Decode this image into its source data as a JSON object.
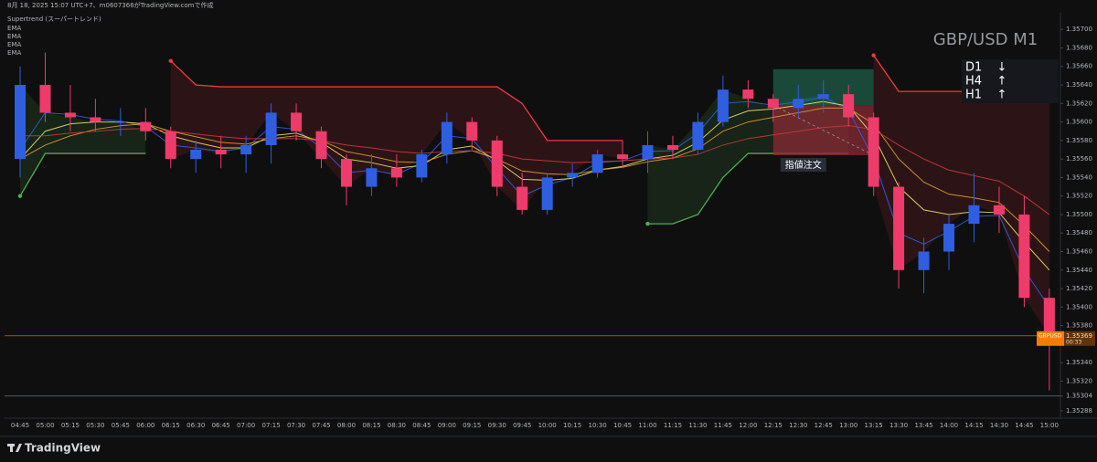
{
  "header": "8月 18, 2025 15:07 UTC+7、m0607366がTradingView.comで作成",
  "footer": {
    "brand": "TradingView"
  },
  "chart_data": {
    "type": "candlestick",
    "title": "GBP/USD M1",
    "up_color": "#2f5fe0",
    "down_color": "#ef3b6b",
    "grid": false,
    "categories": [
      "04:45",
      "05:00",
      "05:15",
      "05:30",
      "05:45",
      "06:00",
      "06:15",
      "06:30",
      "06:45",
      "07:00",
      "07:15",
      "07:30",
      "07:45",
      "08:00",
      "08:15",
      "08:30",
      "08:45",
      "09:00",
      "09:15",
      "09:30",
      "09:45",
      "10:00",
      "10:15",
      "10:30",
      "10:45",
      "11:00",
      "11:15",
      "11:30",
      "11:45",
      "12:00",
      "12:15",
      "12:30",
      "12:45",
      "13:00",
      "13:15",
      "13:30",
      "13:45",
      "14:00",
      "14:15",
      "14:30",
      "14:45",
      "15:00"
    ],
    "candles": {
      "open": [
        1.3556,
        1.3564,
        1.3561,
        1.35605,
        1.356,
        1.356,
        1.3559,
        1.3556,
        1.3557,
        1.35565,
        1.35575,
        1.3561,
        1.3559,
        1.3556,
        1.3553,
        1.3555,
        1.3554,
        1.35565,
        1.356,
        1.3558,
        1.3553,
        1.35505,
        1.3554,
        1.35545,
        1.35565,
        1.3556,
        1.35575,
        1.3557,
        1.356,
        1.35635,
        1.35625,
        1.35615,
        1.35625,
        1.3563,
        1.35605,
        1.3553,
        1.3544,
        1.3546,
        1.3549,
        1.3551,
        1.355,
        1.3541
      ],
      "high": [
        1.3566,
        1.35675,
        1.3564,
        1.35625,
        1.35615,
        1.35615,
        1.35595,
        1.3558,
        1.35585,
        1.35585,
        1.3562,
        1.3562,
        1.35595,
        1.35565,
        1.35565,
        1.35565,
        1.3557,
        1.3561,
        1.35605,
        1.35585,
        1.35545,
        1.35545,
        1.35555,
        1.3557,
        1.3558,
        1.3559,
        1.35585,
        1.3561,
        1.3565,
        1.35645,
        1.3563,
        1.3564,
        1.35645,
        1.3564,
        1.3561,
        1.35535,
        1.35475,
        1.355,
        1.35545,
        1.3553,
        1.3552,
        1.3542
      ],
      "low": [
        1.3554,
        1.356,
        1.3559,
        1.3559,
        1.35585,
        1.3558,
        1.3555,
        1.35545,
        1.3555,
        1.35545,
        1.35555,
        1.3558,
        1.3555,
        1.3551,
        1.3552,
        1.3553,
        1.35535,
        1.35555,
        1.3557,
        1.3552,
        1.355,
        1.355,
        1.3553,
        1.3554,
        1.3555,
        1.35545,
        1.3556,
        1.35565,
        1.35595,
        1.35615,
        1.356,
        1.35605,
        1.3561,
        1.35595,
        1.3552,
        1.3542,
        1.35415,
        1.3544,
        1.3547,
        1.3548,
        1.354,
        1.3531
      ],
      "close": [
        1.3564,
        1.3561,
        1.35605,
        1.356,
        1.356,
        1.3559,
        1.3556,
        1.3557,
        1.35565,
        1.35575,
        1.3561,
        1.3559,
        1.3556,
        1.3553,
        1.3555,
        1.3554,
        1.35565,
        1.356,
        1.3558,
        1.3553,
        1.35505,
        1.3554,
        1.35545,
        1.35565,
        1.3556,
        1.35575,
        1.3557,
        1.356,
        1.35635,
        1.35625,
        1.35615,
        1.35625,
        1.3563,
        1.35605,
        1.3553,
        1.3544,
        1.3546,
        1.3549,
        1.3551,
        1.355,
        1.3541,
        1.35369
      ]
    },
    "series": [
      {
        "name": "EMA",
        "color": "#2f5fe0",
        "values": [
          1.3557,
          1.3561,
          1.35608,
          1.35603,
          1.35601,
          1.35595,
          1.35575,
          1.35572,
          1.35568,
          1.35572,
          1.35595,
          1.35592,
          1.35572,
          1.35545,
          1.35548,
          1.35543,
          1.35556,
          1.35585,
          1.35582,
          1.3555,
          1.3552,
          1.35532,
          1.3554,
          1.35556,
          1.35558,
          1.35568,
          1.35569,
          1.35588,
          1.3562,
          1.35622,
          1.35618,
          1.35622,
          1.35627,
          1.35613,
          1.3556,
          1.3548,
          1.35468,
          1.35482,
          1.35498,
          1.35499,
          1.3544,
          1.354
        ]
      },
      {
        "name": "EMA",
        "color": "#e6df6e",
        "values": [
          1.3556,
          1.3559,
          1.35598,
          1.356,
          1.356,
          1.35598,
          1.35585,
          1.35578,
          1.35572,
          1.35572,
          1.35585,
          1.35588,
          1.35578,
          1.3556,
          1.35556,
          1.3555,
          1.35553,
          1.3557,
          1.35574,
          1.35558,
          1.35538,
          1.35537,
          1.35539,
          1.35548,
          1.35552,
          1.3556,
          1.35564,
          1.35578,
          1.35602,
          1.35612,
          1.35614,
          1.35618,
          1.35622,
          1.35617,
          1.35585,
          1.3553,
          1.35505,
          1.355,
          1.35503,
          1.35502,
          1.3547,
          1.3544
        ]
      },
      {
        "name": "EMA",
        "color": "#d99a2b",
        "values": [
          1.3556,
          1.35575,
          1.35585,
          1.35592,
          1.35596,
          1.35598,
          1.3559,
          1.35584,
          1.35578,
          1.35576,
          1.35582,
          1.35585,
          1.3558,
          1.35568,
          1.35563,
          1.35557,
          1.35556,
          1.35565,
          1.35569,
          1.3556,
          1.35547,
          1.35544,
          1.35543,
          1.35548,
          1.35551,
          1.35557,
          1.35561,
          1.35571,
          1.3559,
          1.356,
          1.35605,
          1.3561,
          1.35615,
          1.35615,
          1.35598,
          1.3556,
          1.35535,
          1.35522,
          1.35518,
          1.35513,
          1.35488,
          1.3546
        ]
      },
      {
        "name": "EMA",
        "color": "#c8383f",
        "values": [
          1.35585,
          1.35585,
          1.35588,
          1.3559,
          1.35592,
          1.35593,
          1.3559,
          1.35587,
          1.35584,
          1.35582,
          1.35582,
          1.35582,
          1.3558,
          1.35575,
          1.35572,
          1.35568,
          1.35566,
          1.35568,
          1.35569,
          1.35566,
          1.3556,
          1.35558,
          1.35556,
          1.35557,
          1.35558,
          1.3556,
          1.35561,
          1.35565,
          1.35575,
          1.35582,
          1.35586,
          1.3559,
          1.35594,
          1.35596,
          1.35592,
          1.35575,
          1.3556,
          1.35548,
          1.35542,
          1.35536,
          1.3552,
          1.355
        ]
      }
    ],
    "supertrend": {
      "label": "Supertrend (スーパートレンド)",
      "up_color": "#4caf50",
      "down_color": "#f23645",
      "up": [
        1.3552,
        1.35566,
        1.35566,
        1.35566,
        1.35566,
        1.35566,
        null,
        null,
        null,
        null,
        null,
        null,
        null,
        null,
        null,
        null,
        null,
        null,
        null,
        null,
        null,
        null,
        null,
        null,
        null,
        1.3549,
        1.3549,
        1.355,
        1.3554,
        1.35566,
        1.35566,
        1.35566,
        1.35566,
        1.35566,
        null,
        null,
        null,
        null,
        null,
        null,
        null,
        null
      ],
      "down": [
        null,
        null,
        null,
        null,
        null,
        null,
        1.35666,
        1.3564,
        1.35638,
        1.35638,
        1.35638,
        1.35638,
        1.35638,
        1.35638,
        1.35638,
        1.35638,
        1.35638,
        1.35638,
        1.35638,
        1.35638,
        1.3562,
        1.3558,
        1.3558,
        1.3558,
        1.3558,
        null,
        null,
        null,
        null,
        null,
        null,
        null,
        null,
        null,
        1.35672,
        1.35633,
        1.35633,
        1.35633,
        1.35633,
        1.35633,
        1.35633,
        1.35633
      ]
    },
    "order_box": {
      "label": "指値注文",
      "x_start": "12:15",
      "x_end": "13:15",
      "target": 1.35657,
      "entry": 1.35618,
      "stop": 1.35564
    },
    "trend_panel": [
      {
        "tf": "D1",
        "arrow": "↓"
      },
      {
        "tf": "H4",
        "arrow": "↑"
      },
      {
        "tf": "H1",
        "arrow": "↑"
      }
    ],
    "last_price": {
      "symbol": "GBPUSD",
      "value": 1.35369,
      "countdown": "00:33",
      "color": "#f57c00"
    },
    "low_line": 1.35304,
    "ylim": [
      1.3528,
      1.35714
    ],
    "yticks": [
      {
        "value": 1.357,
        "label": "1.35700"
      },
      {
        "value": 1.3568,
        "label": "1.35680"
      },
      {
        "value": 1.3566,
        "label": "1.35660"
      },
      {
        "value": 1.3564,
        "label": "1.35640"
      },
      {
        "value": 1.3562,
        "label": "1.35620"
      },
      {
        "value": 1.356,
        "label": "1.35600"
      },
      {
        "value": 1.3558,
        "label": "1.35580"
      },
      {
        "value": 1.3556,
        "label": "1.35560"
      },
      {
        "value": 1.3554,
        "label": "1.35540"
      },
      {
        "value": 1.3552,
        "label": "1.35520"
      },
      {
        "value": 1.355,
        "label": "1.35500"
      },
      {
        "value": 1.3548,
        "label": "1.35480"
      },
      {
        "value": 1.3546,
        "label": "1.35460"
      },
      {
        "value": 1.3544,
        "label": "1.35440"
      },
      {
        "value": 1.3542,
        "label": "1.35420"
      },
      {
        "value": 1.354,
        "label": "1.35400"
      },
      {
        "value": 1.3538,
        "label": "1.35380"
      },
      {
        "value": 1.3534,
        "label": "1.35340"
      },
      {
        "value": 1.3532,
        "label": "1.35320"
      },
      1.35304,
      1.35288
    ]
  }
}
